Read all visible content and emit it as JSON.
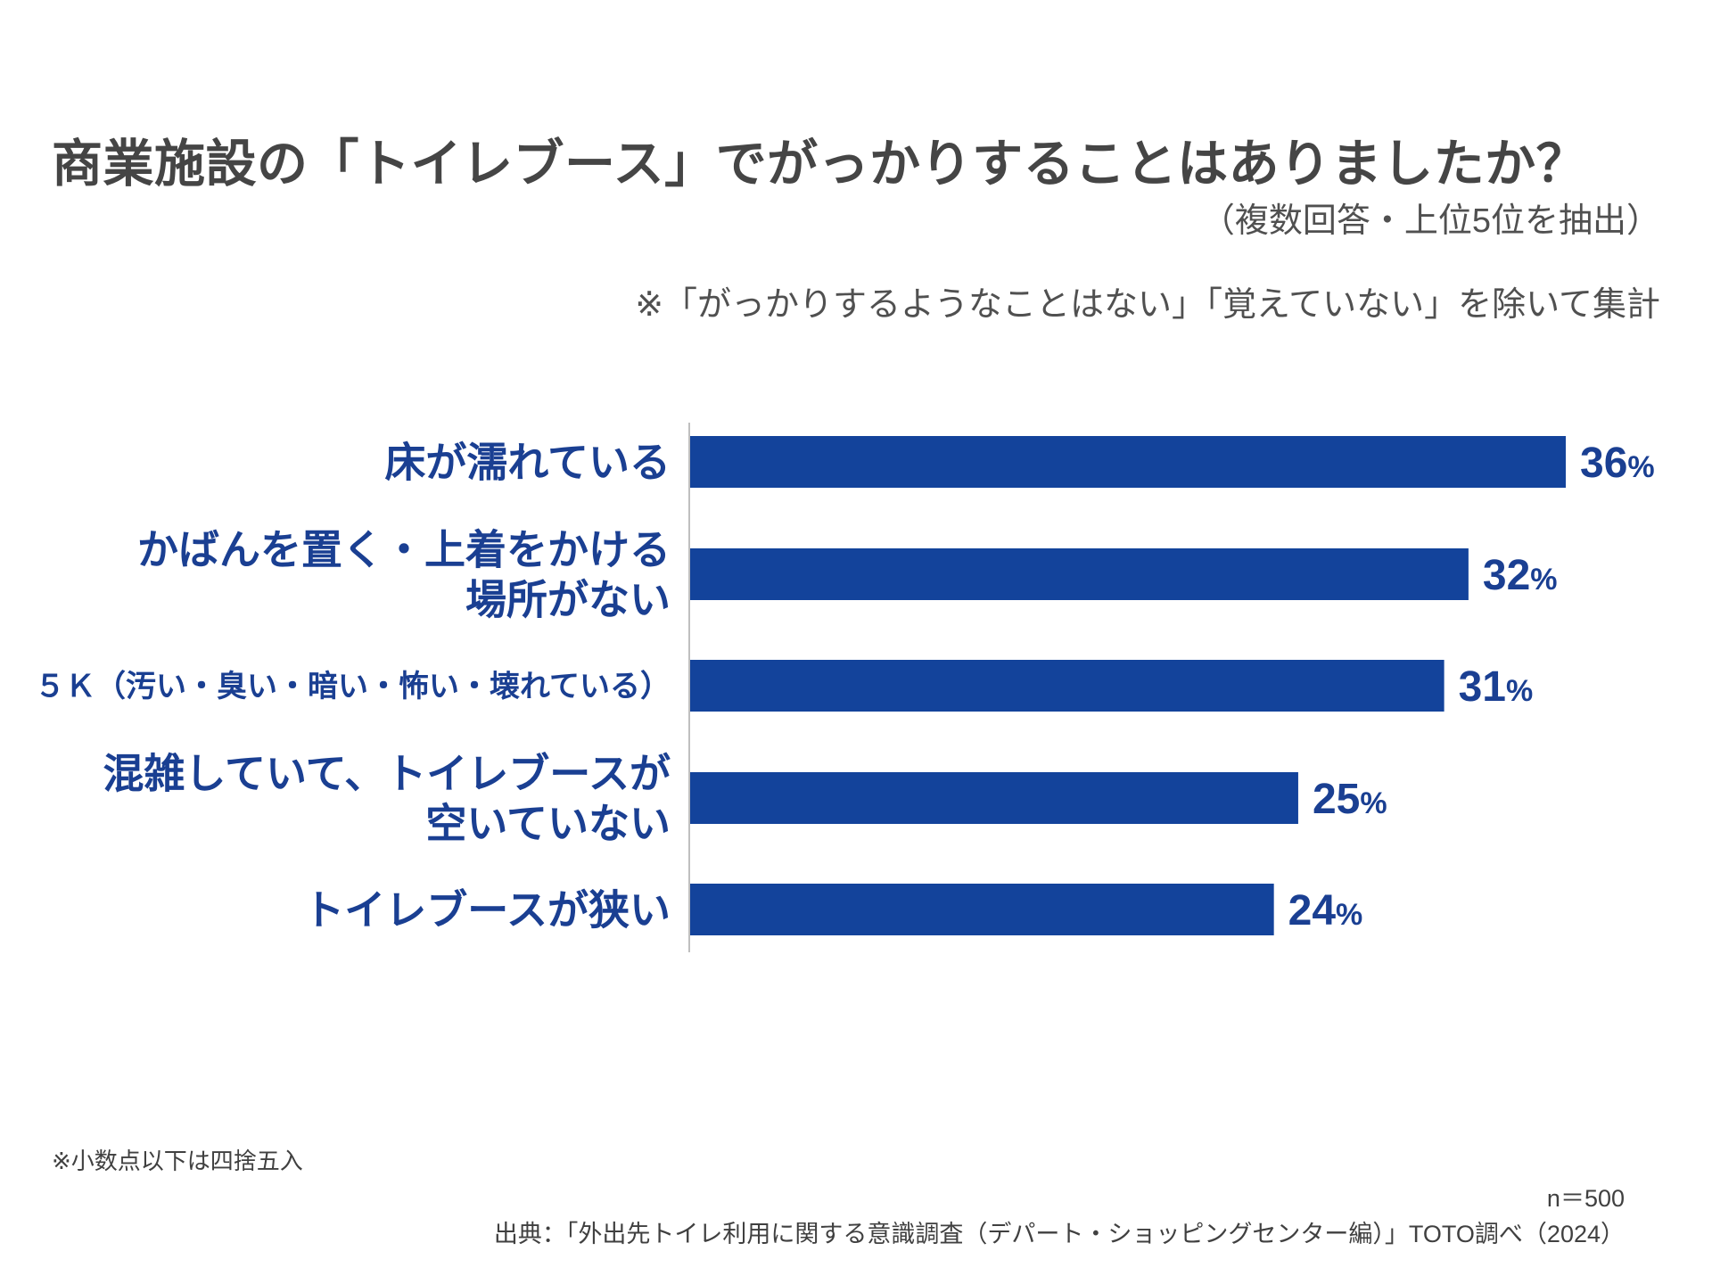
{
  "header": {
    "title": "商業施設の「トイレブース」でがっかりすることはありましたか？",
    "subtitle": "（複数回答・上位5位を抽出）",
    "note": "※「がっかりするようなことはない」「覚えていない」を除いて集計"
  },
  "chart_data": {
    "type": "bar",
    "orientation": "horizontal",
    "categories": [
      [
        "床が濡れている"
      ],
      [
        "かばんを置く・上着をかける",
        "場所がない"
      ],
      [
        "５Ｋ（汚い・臭い・暗い・怖い・壊れている）"
      ],
      [
        "混雑していて、トイレブースが",
        "空いていない"
      ],
      [
        "トイレブースが狭い"
      ]
    ],
    "values": [
      36,
      32,
      31,
      25,
      24
    ],
    "value_unit": "%",
    "xlim": [
      0,
      36
    ],
    "bar_color": "#13439b",
    "label_color": "#1a3f92",
    "grid": false
  },
  "footer": {
    "footnote": "※小数点以下は四捨五入",
    "sample": "n＝500",
    "source": "出典：「外出先トイレ利用に関する意識調査（デパート・ショッピングセンター編）」TOTO調べ（2024）"
  }
}
